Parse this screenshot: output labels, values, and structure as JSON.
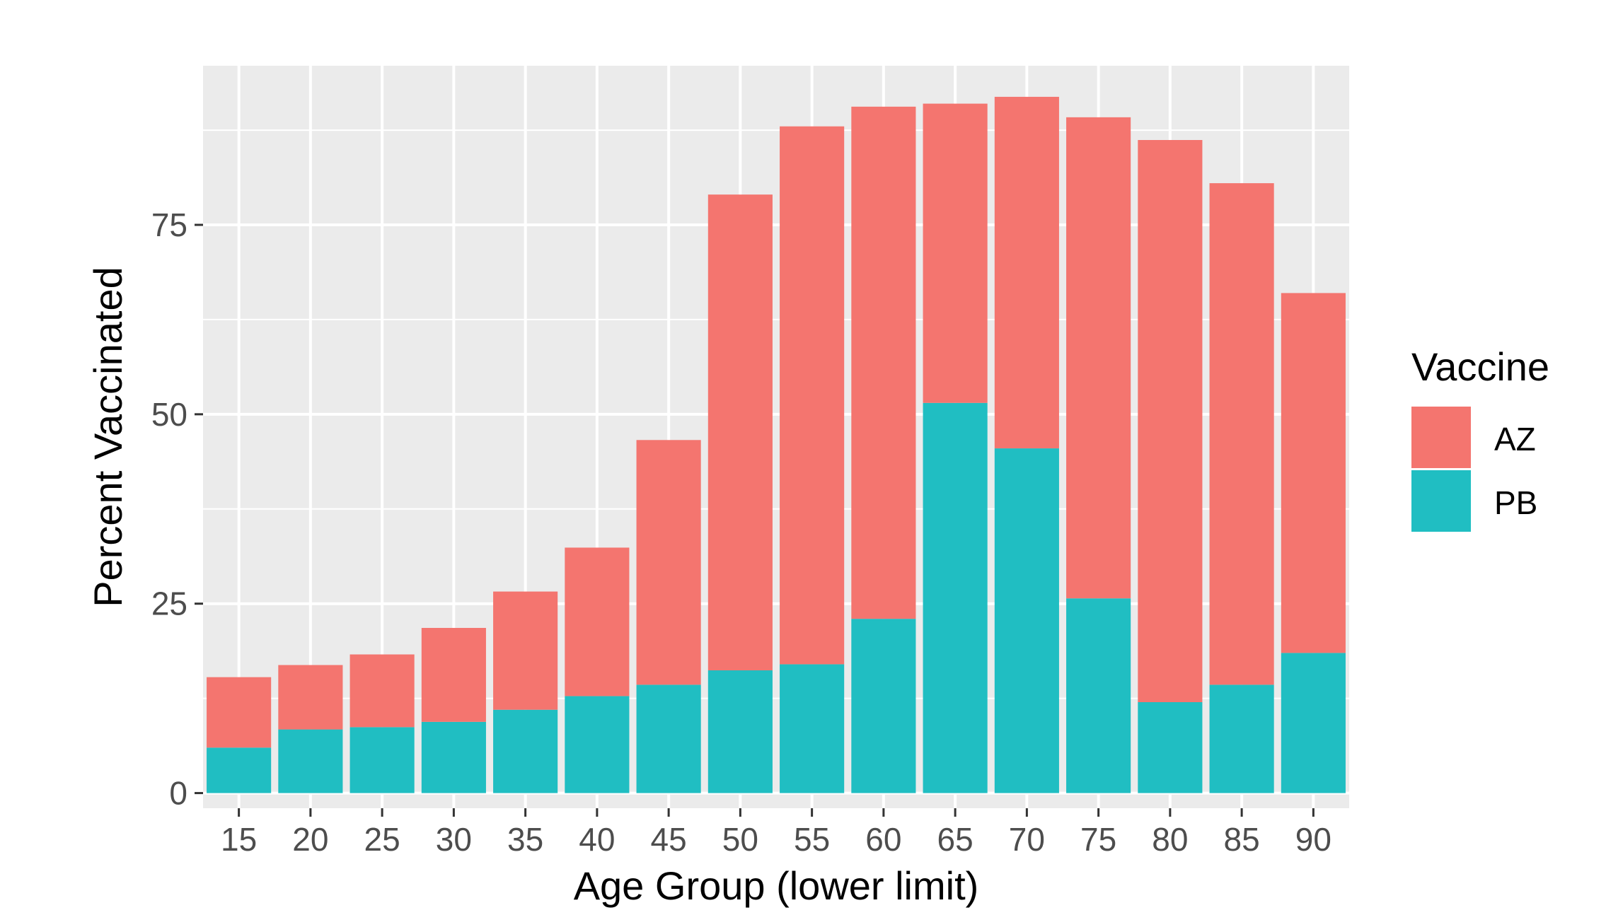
{
  "chart_data": {
    "type": "bar",
    "stacked": true,
    "xlabel": "Age Group (lower limit)",
    "ylabel": "Percent Vaccinated",
    "categories": [
      "15",
      "20",
      "25",
      "30",
      "35",
      "40",
      "45",
      "50",
      "55",
      "60",
      "65",
      "70",
      "75",
      "80",
      "85",
      "90"
    ],
    "series": [
      {
        "name": "PB",
        "color": "#20bec2",
        "values": [
          6,
          8.4,
          8.7,
          9.4,
          11.0,
          12.8,
          14.3,
          16.2,
          17.0,
          23.0,
          51.5,
          45.5,
          25.7,
          12.0,
          14.3,
          18.5
        ]
      },
      {
        "name": "AZ",
        "color": "#f4756f",
        "values": [
          9.3,
          8.5,
          9.6,
          12.4,
          15.6,
          19.6,
          32.3,
          62.8,
          71.0,
          67.6,
          39.5,
          46.4,
          63.5,
          74.2,
          66.2,
          47.5
        ]
      }
    ],
    "stack_order": [
      "PB",
      "AZ"
    ],
    "ylim": [
      -2,
      96
    ],
    "yticks": [
      0,
      25,
      50,
      75
    ],
    "ytick_labels": [
      "0",
      "25",
      "50",
      "75"
    ],
    "grid": true,
    "legend": {
      "title": "Vaccine",
      "placement": "right",
      "entries": [
        "AZ",
        "PB"
      ]
    },
    "panel_background": "#ebebeb",
    "grid_color": "#ffffff"
  }
}
